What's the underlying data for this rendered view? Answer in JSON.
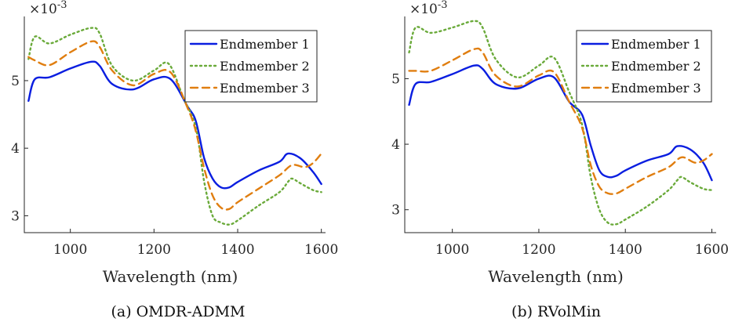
{
  "colors": {
    "endmember_1": "#0a1ee0",
    "endmember_2": "#6aaa3a",
    "endmember_3": "#e07e10"
  },
  "chart_data": [
    {
      "type": "line",
      "caption": "(a) OMDR-ADMM",
      "xlabel": "Wavelength (nm)",
      "ylabel": "",
      "y_exponent_label": "×10",
      "y_exponent": "-3",
      "xlim": [
        890,
        1610
      ],
      "ylim": [
        2.75,
        5.95
      ],
      "xticks": [
        1000,
        1200,
        1400,
        1600
      ],
      "yticks": [
        3,
        4,
        5
      ],
      "grid": false,
      "legend_position": "top-right",
      "series": [
        {
          "name": "Endmember 1",
          "style": "solid",
          "color_key": "endmember_1",
          "x": [
            900,
            915,
            950,
            1000,
            1050,
            1070,
            1100,
            1150,
            1200,
            1240,
            1280,
            1300,
            1320,
            1340,
            1360,
            1380,
            1400,
            1450,
            1500,
            1520,
            1550,
            1580,
            1600
          ],
          "y": [
            4.7,
            5.02,
            5.05,
            5.18,
            5.28,
            5.22,
            4.95,
            4.87,
            5.02,
            5.02,
            4.62,
            4.4,
            3.85,
            3.55,
            3.42,
            3.42,
            3.5,
            3.67,
            3.8,
            3.92,
            3.85,
            3.65,
            3.47
          ]
        },
        {
          "name": "Endmember 2",
          "style": "dotted",
          "color_key": "endmember_2",
          "x": [
            900,
            915,
            950,
            1000,
            1050,
            1070,
            1100,
            1150,
            1200,
            1235,
            1270,
            1300,
            1320,
            1340,
            1360,
            1380,
            1400,
            1450,
            1500,
            1520,
            1530,
            1550,
            1580,
            1600
          ],
          "y": [
            5.32,
            5.65,
            5.55,
            5.68,
            5.78,
            5.7,
            5.22,
            5.0,
            5.15,
            5.25,
            4.75,
            4.3,
            3.5,
            3.0,
            2.9,
            2.87,
            2.93,
            3.15,
            3.35,
            3.5,
            3.55,
            3.48,
            3.38,
            3.35
          ]
        },
        {
          "name": "Endmember 3",
          "style": "dashed",
          "color_key": "endmember_3",
          "x": [
            900,
            915,
            950,
            1000,
            1050,
            1070,
            1100,
            1150,
            1200,
            1240,
            1280,
            1300,
            1320,
            1340,
            1360,
            1380,
            1400,
            1450,
            1500,
            1530,
            1560,
            1580,
            1600
          ],
          "y": [
            5.35,
            5.3,
            5.23,
            5.42,
            5.58,
            5.5,
            5.15,
            4.93,
            5.1,
            5.12,
            4.6,
            4.25,
            3.7,
            3.3,
            3.12,
            3.1,
            3.2,
            3.4,
            3.6,
            3.75,
            3.72,
            3.78,
            3.92
          ]
        }
      ]
    },
    {
      "type": "line",
      "caption": "(b) RVolMin",
      "xlabel": "Wavelength (nm)",
      "ylabel": "",
      "y_exponent_label": "×10",
      "y_exponent": "-3",
      "xlim": [
        890,
        1610
      ],
      "ylim": [
        2.65,
        5.95
      ],
      "xticks": [
        1000,
        1200,
        1400,
        1600
      ],
      "yticks": [
        3,
        4,
        5
      ],
      "grid": false,
      "legend_position": "top-right",
      "series": [
        {
          "name": "Endmember 1",
          "style": "solid",
          "color_key": "endmember_1",
          "x": [
            900,
            915,
            950,
            1000,
            1050,
            1070,
            1100,
            1150,
            1200,
            1235,
            1270,
            1300,
            1320,
            1340,
            1360,
            1380,
            1400,
            1450,
            1500,
            1520,
            1550,
            1580,
            1600
          ],
          "y": [
            4.6,
            4.92,
            4.95,
            5.07,
            5.2,
            5.15,
            4.92,
            4.85,
            5.0,
            5.02,
            4.65,
            4.45,
            3.98,
            3.6,
            3.5,
            3.52,
            3.6,
            3.75,
            3.85,
            3.97,
            3.92,
            3.72,
            3.45
          ]
        },
        {
          "name": "Endmember 2",
          "style": "dotted",
          "color_key": "endmember_2",
          "x": [
            900,
            915,
            950,
            1000,
            1050,
            1070,
            1100,
            1150,
            1200,
            1235,
            1270,
            1300,
            1320,
            1340,
            1360,
            1380,
            1400,
            1450,
            1500,
            1520,
            1530,
            1550,
            1580,
            1600
          ],
          "y": [
            5.4,
            5.78,
            5.7,
            5.78,
            5.88,
            5.78,
            5.3,
            5.02,
            5.2,
            5.32,
            4.8,
            4.3,
            3.5,
            3.0,
            2.8,
            2.78,
            2.85,
            3.05,
            3.3,
            3.45,
            3.5,
            3.42,
            3.32,
            3.3
          ]
        },
        {
          "name": "Endmember 3",
          "style": "dashed",
          "color_key": "endmember_3",
          "x": [
            900,
            915,
            950,
            1000,
            1050,
            1070,
            1100,
            1150,
            1200,
            1235,
            1270,
            1300,
            1320,
            1340,
            1360,
            1380,
            1400,
            1450,
            1500,
            1530,
            1560,
            1580,
            1600
          ],
          "y": [
            5.12,
            5.12,
            5.12,
            5.28,
            5.45,
            5.4,
            5.05,
            4.88,
            5.05,
            5.1,
            4.65,
            4.25,
            3.68,
            3.35,
            3.25,
            3.25,
            3.32,
            3.5,
            3.65,
            3.8,
            3.72,
            3.75,
            3.85
          ]
        }
      ]
    }
  ]
}
